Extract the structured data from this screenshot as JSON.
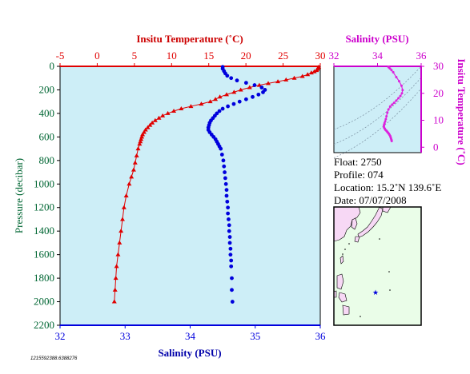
{
  "colors": {
    "temperature": "#e00000",
    "salinity": "#0000dd",
    "ts_curve": "#dd22dd",
    "plot_bg": "#cdeef7",
    "map_sea": "#eafde8",
    "map_land": "#f7d8f5",
    "axis_magenta": "#cc00cc"
  },
  "float_info": {
    "float": "Float:  2750",
    "profile": "Profile:  074",
    "location": "Location:  15.2˚N  139.6˚E",
    "date": "Date:  07/07/2008"
  },
  "footer_id": "1215592388.6388276",
  "chart_data": [
    {
      "type": "line",
      "title": "",
      "x_top_label": "Insitu Temperature (˚C)",
      "x_bottom_label": "Salinity (PSU)",
      "ylabel": "Pressure (decibar)",
      "ylim": [
        2200,
        0
      ],
      "temperature_xlim": [
        -5,
        30
      ],
      "salinity_xlim": [
        32,
        36
      ],
      "temperature_ticks": [
        "-5",
        "0",
        "5",
        "10",
        "15",
        "20",
        "25",
        "30"
      ],
      "salinity_ticks": [
        "32",
        "33",
        "34",
        "35",
        "36"
      ],
      "pressure_ticks": [
        "0",
        "200",
        "400",
        "600",
        "800",
        "1000",
        "1200",
        "1400",
        "1600",
        "1800",
        "2000",
        "2200"
      ],
      "grid": false,
      "series": [
        {
          "name": "Insitu Temperature",
          "marker": "triangle",
          "pressure": [
            5,
            15,
            25,
            35,
            45,
            55,
            70,
            85,
            100,
            115,
            130,
            145,
            160,
            180,
            200,
            220,
            240,
            260,
            280,
            300,
            320,
            340,
            360,
            380,
            400,
            420,
            440,
            460,
            480,
            500,
            520,
            540,
            560,
            580,
            600,
            620,
            640,
            660,
            700,
            760,
            820,
            880,
            940,
            1000,
            1100,
            1200,
            1300,
            1400,
            1500,
            1600,
            1700,
            1800,
            1900,
            2000
          ],
          "values": [
            29.8,
            29.7,
            29.6,
            29.5,
            29.2,
            28.8,
            28.3,
            27.6,
            26.5,
            25.4,
            24.3,
            23.0,
            21.8,
            20.5,
            19.3,
            18.4,
            17.4,
            16.5,
            15.9,
            15.2,
            14.0,
            12.6,
            11.3,
            10.3,
            9.5,
            8.8,
            8.3,
            7.8,
            7.4,
            7.1,
            6.8,
            6.5,
            6.3,
            6.1,
            6.0,
            5.9,
            5.8,
            5.7,
            5.5,
            5.3,
            5.1,
            4.9,
            4.6,
            4.3,
            3.9,
            3.6,
            3.4,
            3.2,
            3.0,
            2.8,
            2.6,
            2.5,
            2.4,
            2.3
          ]
        },
        {
          "name": "Salinity",
          "marker": "circle",
          "pressure": [
            5,
            20,
            40,
            60,
            80,
            100,
            120,
            140,
            160,
            180,
            200,
            220,
            240,
            260,
            280,
            300,
            320,
            340,
            360,
            380,
            400,
            420,
            440,
            460,
            480,
            500,
            520,
            540,
            560,
            580,
            600,
            620,
            640,
            660,
            680,
            700,
            750,
            800,
            850,
            900,
            950,
            1000,
            1050,
            1100,
            1150,
            1200,
            1250,
            1300,
            1350,
            1400,
            1450,
            1500,
            1550,
            1600,
            1650,
            1700,
            1800,
            1900,
            2000
          ],
          "values": [
            34.5,
            34.5,
            34.52,
            34.54,
            34.57,
            34.63,
            34.72,
            34.86,
            34.99,
            35.1,
            35.15,
            35.12,
            35.05,
            34.96,
            34.86,
            34.76,
            34.67,
            34.58,
            34.5,
            34.45,
            34.41,
            34.38,
            34.35,
            34.32,
            34.3,
            34.29,
            34.28,
            34.28,
            34.3,
            34.33,
            34.36,
            34.39,
            34.41,
            34.43,
            34.45,
            34.47,
            34.49,
            34.51,
            34.52,
            34.53,
            34.54,
            34.55,
            34.56,
            34.56,
            34.57,
            34.58,
            34.58,
            34.59,
            34.6,
            34.6,
            34.61,
            34.61,
            34.62,
            34.62,
            34.63,
            34.63,
            34.64,
            34.64,
            34.65
          ]
        }
      ]
    },
    {
      "type": "line",
      "title": "",
      "x_top_label": "Salinity (PSU)",
      "ylabel": "Insitu Temperature (˚C)",
      "xlim": [
        32,
        36
      ],
      "ylim": [
        -2,
        30
      ],
      "x_ticks": [
        "32",
        "34",
        "36"
      ],
      "y_ticks": [
        "0",
        "10",
        "20",
        "30"
      ],
      "series": [
        {
          "name": "T-S",
          "x": [
            34.5,
            34.52,
            34.57,
            34.64,
            34.72,
            34.86,
            34.99,
            35.1,
            35.15,
            35.12,
            35.05,
            34.96,
            34.86,
            34.76,
            34.67,
            34.58,
            34.5,
            34.45,
            34.41,
            34.38,
            34.35,
            34.32,
            34.3,
            34.29,
            34.3,
            34.33,
            34.36,
            34.4,
            34.43,
            34.46,
            34.49,
            34.52,
            34.55,
            34.58,
            34.6,
            34.62,
            34.64,
            34.65
          ],
          "y": [
            29.8,
            29.6,
            29.2,
            28.6,
            27.8,
            26.0,
            24.5,
            22.8,
            21.2,
            20.0,
            19.0,
            18.2,
            17.3,
            16.5,
            15.8,
            15.1,
            14.0,
            12.8,
            11.5,
            10.4,
            9.6,
            8.9,
            8.3,
            7.8,
            7.3,
            6.9,
            6.5,
            6.2,
            5.9,
            5.6,
            5.3,
            5.0,
            4.6,
            4.2,
            3.7,
            3.2,
            2.7,
            2.3
          ]
        }
      ]
    }
  ],
  "map": {
    "float_marker_glyph": "★"
  }
}
